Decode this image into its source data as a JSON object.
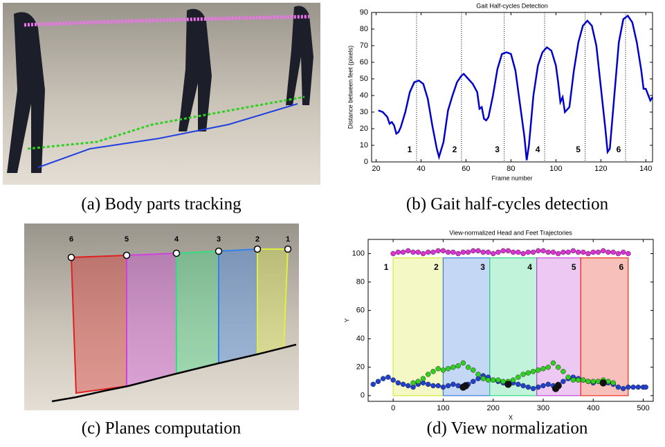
{
  "figure": {
    "captions": [
      "(a) Body parts tracking",
      "(b) Gait half-cycles detection",
      "(c) Planes computation",
      "(d) View normalization"
    ],
    "plane_labels": [
      "6",
      "5",
      "4",
      "3",
      "2",
      "1"
    ]
  },
  "chart_data": [
    {
      "type": "line",
      "title": "Gait Half-cycles Detection",
      "xlabel": "Frame number",
      "ylabel": "Distance between feet (pixels)",
      "xlim": [
        18,
        143
      ],
      "xticks": [
        20,
        40,
        60,
        80,
        100,
        120,
        140
      ],
      "ylim": [
        0,
        90
      ],
      "yticks": [
        0,
        10,
        20,
        30,
        40,
        50,
        60,
        70,
        80,
        90
      ],
      "color": "#0000cc",
      "x": [
        21,
        23,
        25,
        26,
        27,
        28,
        29,
        30,
        31,
        33,
        35,
        37,
        39,
        41,
        43,
        45,
        47,
        48,
        50,
        52,
        54,
        56,
        58,
        59,
        61,
        63,
        65,
        66,
        67,
        68,
        69,
        70,
        72,
        74,
        76,
        78,
        80,
        82,
        84,
        86,
        87,
        88,
        90,
        92,
        94,
        96,
        98,
        100,
        101,
        102,
        103,
        104,
        106,
        108,
        110,
        112,
        114,
        116,
        118,
        120,
        122,
        123,
        124,
        126,
        128,
        130,
        132,
        134,
        136,
        138,
        139,
        140,
        142,
        143
      ],
      "values": [
        31,
        30,
        27,
        23,
        24,
        22,
        17,
        18,
        21,
        30,
        42,
        48,
        49,
        47,
        38,
        22,
        8,
        3,
        12,
        31,
        40,
        48,
        52,
        53,
        50,
        47,
        42,
        32,
        33,
        26,
        25,
        27,
        40,
        56,
        65,
        66,
        65,
        55,
        35,
        15,
        1,
        10,
        40,
        58,
        66,
        69,
        67,
        58,
        48,
        36,
        39,
        30,
        33,
        55,
        72,
        82,
        85,
        82,
        70,
        45,
        20,
        6,
        8,
        40,
        72,
        86,
        88,
        84,
        72,
        55,
        44,
        44,
        37,
        39
      ],
      "markers": {
        "x": [
          38,
          58,
          77,
          95,
          113,
          131
        ],
        "labels": [
          "1",
          "2",
          "3",
          "4",
          "5",
          "6"
        ]
      }
    },
    {
      "type": "scatter",
      "title": "View-normalized Head and Feet Trajectories",
      "xlabel": "X",
      "ylabel": "Y",
      "xlim": [
        -50,
        520
      ],
      "xticks": [
        0,
        100,
        200,
        300,
        400,
        500
      ],
      "ylim": [
        -4,
        110
      ],
      "yticks": [
        0,
        20,
        40,
        60,
        80,
        100
      ],
      "regions": {
        "x": [
          0,
          100,
          193,
          287,
          375,
          470
        ],
        "labels": [
          "1",
          "2",
          "3",
          "4",
          "5",
          "6"
        ],
        "colors": [
          "#d8e83a",
          "#3a7fe0",
          "#2fd884",
          "#c04ad8",
          "#e8301a"
        ]
      },
      "series": [
        {
          "color": "#e030d8",
          "x": [
            0,
            10,
            20,
            30,
            40,
            50,
            60,
            70,
            80,
            90,
            100,
            110,
            120,
            130,
            140,
            150,
            160,
            170,
            180,
            190,
            200,
            210,
            220,
            230,
            240,
            250,
            260,
            270,
            280,
            290,
            300,
            310,
            320,
            330,
            340,
            350,
            360,
            370,
            380,
            390,
            400,
            410,
            420,
            430,
            440,
            450,
            460,
            470
          ],
          "y": [
            100,
            101,
            101,
            102,
            101,
            101,
            100,
            101,
            101,
            102,
            102,
            101,
            101,
            100,
            101,
            101,
            102,
            102,
            101,
            101,
            100,
            101,
            102,
            102,
            101,
            101,
            100,
            101,
            101,
            102,
            102,
            101,
            101,
            100,
            101,
            101,
            102,
            101,
            101,
            100,
            101,
            101,
            102,
            101,
            101,
            100,
            101,
            100
          ]
        },
        {
          "color": "#2040d0",
          "x": [
            -40,
            -30,
            -20,
            -10,
            0,
            10,
            20,
            30,
            40,
            50,
            60,
            70,
            80,
            90,
            100,
            110,
            120,
            130,
            140,
            150,
            160,
            170,
            180,
            190,
            200,
            210,
            220,
            230,
            240,
            250,
            260,
            270,
            280,
            290,
            300,
            310,
            320,
            330,
            340,
            350,
            360,
            370,
            380,
            390,
            400,
            410,
            420,
            430,
            440,
            450,
            460,
            470,
            480,
            490,
            500,
            505
          ],
          "y": [
            8,
            10,
            12,
            13,
            11,
            9,
            8,
            7,
            6,
            8,
            9,
            8,
            7,
            7,
            6,
            7,
            8,
            7,
            6,
            8,
            10,
            12,
            14,
            13,
            11,
            10,
            9,
            8,
            9,
            8,
            7,
            6,
            5,
            6,
            7,
            8,
            7,
            8,
            10,
            12,
            13,
            12,
            11,
            10,
            9,
            10,
            10,
            9,
            8,
            6,
            5,
            6,
            6,
            6,
            6,
            6
          ]
        },
        {
          "color": "#30d020",
          "x": [
            40,
            50,
            60,
            70,
            80,
            90,
            100,
            110,
            120,
            130,
            140,
            150,
            160,
            170,
            180,
            190,
            200,
            210,
            220,
            230,
            240,
            250,
            260,
            270,
            280,
            290,
            300,
            310,
            320,
            330,
            340,
            350,
            360,
            370,
            380,
            390,
            400,
            410,
            420,
            430,
            440
          ],
          "y": [
            9,
            10,
            12,
            15,
            17,
            19,
            18,
            19,
            20,
            21,
            23,
            20,
            18,
            15,
            12,
            11,
            11,
            11,
            10,
            10,
            11,
            13,
            15,
            16,
            17,
            18,
            19,
            20,
            23,
            20,
            17,
            13,
            11,
            11,
            11,
            10,
            10,
            10,
            11,
            10,
            9
          ]
        },
        {
          "color": "#111111",
          "x": [
            140,
            145,
            230,
            325,
            330,
            420
          ],
          "y": [
            6,
            7,
            8,
            5,
            7,
            9
          ]
        }
      ]
    }
  ]
}
